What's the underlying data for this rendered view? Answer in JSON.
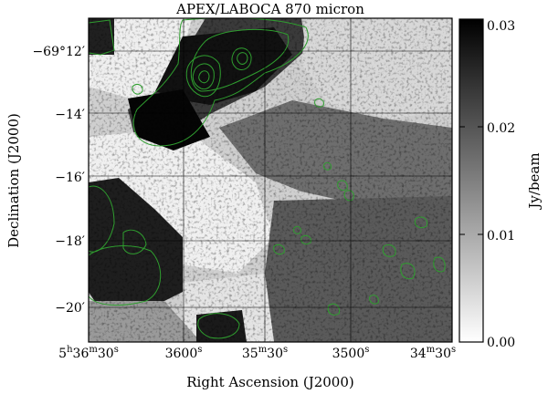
{
  "figure": {
    "title": "APEX/LABOCA 870 micron",
    "xlabel": "Right Ascension (J2000)",
    "ylabel": "Declination (J2000)",
    "x_ticks": [
      {
        "h": "5",
        "hu": "h",
        "m": "36",
        "mu": "m",
        "s": "30",
        "su": "s"
      },
      {
        "h": "",
        "hu": "",
        "m": "36",
        "mu": "",
        "s": "00",
        "su": "s"
      },
      {
        "h": "",
        "hu": "",
        "m": "35",
        "mu": "m",
        "s": "30",
        "su": "s"
      },
      {
        "h": "",
        "hu": "",
        "m": "35",
        "mu": "",
        "s": "00",
        "su": "s"
      },
      {
        "h": "",
        "hu": "",
        "m": "34",
        "mu": "m",
        "s": "30",
        "su": "s"
      }
    ],
    "y_ticks": [
      "−69°12′",
      "−14′",
      "−16′",
      "−18′",
      "−20′"
    ],
    "colorbar": {
      "label": "Jy/beam",
      "ticks": [
        "0.03",
        "0.02",
        "0.01",
        "0.00"
      ],
      "range": [
        0.0,
        0.03
      ],
      "colormap": "gray_r"
    },
    "colors": {
      "contour": "#2f9e2f",
      "frame": "#000000"
    }
  }
}
